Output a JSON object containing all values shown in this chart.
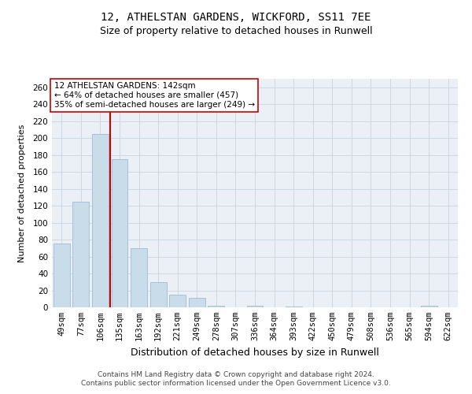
{
  "title": "12, ATHELSTAN GARDENS, WICKFORD, SS11 7EE",
  "subtitle": "Size of property relative to detached houses in Runwell",
  "xlabel": "Distribution of detached houses by size in Runwell",
  "ylabel": "Number of detached properties",
  "categories": [
    "49sqm",
    "77sqm",
    "106sqm",
    "135sqm",
    "163sqm",
    "192sqm",
    "221sqm",
    "249sqm",
    "278sqm",
    "307sqm",
    "336sqm",
    "364sqm",
    "393sqm",
    "422sqm",
    "450sqm",
    "479sqm",
    "508sqm",
    "536sqm",
    "565sqm",
    "594sqm",
    "622sqm"
  ],
  "values": [
    75,
    125,
    205,
    175,
    70,
    30,
    15,
    11,
    2,
    0,
    2,
    0,
    1,
    0,
    0,
    0,
    0,
    0,
    0,
    2,
    0
  ],
  "bar_color": "#c9dcea",
  "bar_edge_color": "#a0bcce",
  "red_line_x": 2.5,
  "red_line_color": "#cc0000",
  "annotation_line1": "12 ATHELSTAN GARDENS: 142sqm",
  "annotation_line2": "← 64% of detached houses are smaller (457)",
  "annotation_line3": "35% of semi-detached houses are larger (249) →",
  "annotation_box_color": "#ffffff",
  "annotation_box_edge": "#cc0000",
  "ylim": [
    0,
    270
  ],
  "yticks": [
    0,
    20,
    40,
    60,
    80,
    100,
    120,
    140,
    160,
    180,
    200,
    220,
    240,
    260
  ],
  "grid_color": "#c8d4e0",
  "background_color": "#eaf0f6",
  "footer_line1": "Contains HM Land Registry data © Crown copyright and database right 2024.",
  "footer_line2": "Contains public sector information licensed under the Open Government Licence v3.0.",
  "title_fontsize": 10,
  "subtitle_fontsize": 9,
  "xlabel_fontsize": 9,
  "ylabel_fontsize": 8,
  "tick_fontsize": 7.5,
  "annotation_fontsize": 7.5,
  "footer_fontsize": 6.5
}
